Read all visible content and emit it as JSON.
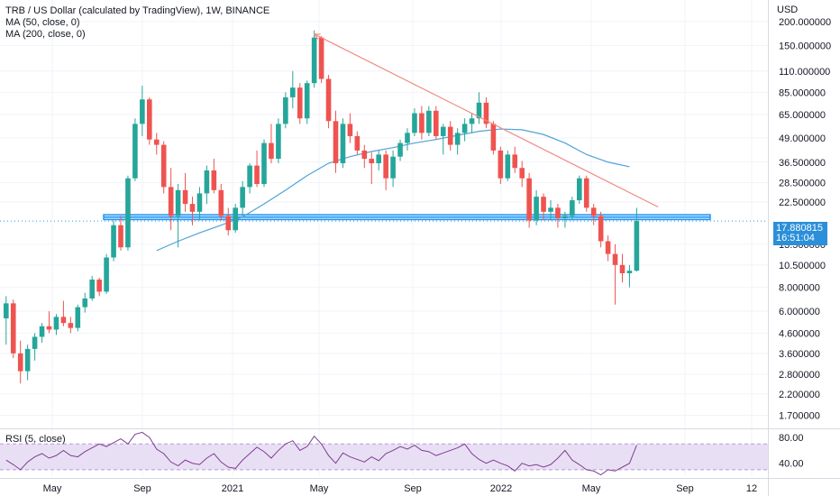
{
  "legend": {
    "title": "TRB / US Dollar (calculated by TradingView), 1W, BINANCE",
    "ma50": "MA (50, close, 0)",
    "ma200": "MA (200, close, 0)",
    "rsi": "RSI (5, close)"
  },
  "price_badge": {
    "price": "17.880815",
    "countdown": "16:51:04"
  },
  "colors": {
    "up": "#26a69a",
    "down": "#ef5350",
    "ma": "#4ea3d6",
    "trendline": "#f08a83",
    "zone": "#2196f3",
    "rsi_line": "#7e3f8f",
    "rsi_band": "#e9dff5",
    "grid": "#f0f3fa"
  },
  "chart_data": {
    "type": "candlestick",
    "y_axis": {
      "unit": "USD",
      "scale": "log",
      "ticks": [
        "200.000000",
        "150.000000",
        "110.000000",
        "85.000000",
        "65.000000",
        "49.000000",
        "36.500000",
        "28.500000",
        "22.500000",
        "17.880815",
        "13.500000",
        "10.500000",
        "8.000000",
        "6.000000",
        "4.600000",
        "3.600000",
        "2.800000",
        "2.200000",
        "1.700000"
      ],
      "tick_values": [
        200,
        150,
        110,
        85,
        65,
        49,
        36.5,
        28.5,
        22.5,
        13.5,
        10.5,
        8,
        6,
        4.6,
        3.6,
        2.8,
        2.2,
        1.7
      ],
      "range": [
        1.5,
        260
      ]
    },
    "x_axis": {
      "labels": [
        "May",
        "Sep",
        "2021",
        "May",
        "Sep",
        "2022",
        "May",
        "Sep",
        "12"
      ]
    },
    "last_price": 17.880815,
    "candles": [
      [
        1,
        5.5,
        7.2,
        4.0,
        6.6
      ],
      [
        2,
        6.6,
        6.9,
        3.4,
        3.6
      ],
      [
        3,
        3.6,
        4.2,
        2.5,
        2.9
      ],
      [
        4,
        2.9,
        4.0,
        2.6,
        3.8
      ],
      [
        5,
        3.8,
        4.6,
        3.3,
        4.4
      ],
      [
        6,
        4.4,
        5.2,
        4.1,
        5.0
      ],
      [
        7,
        5.0,
        6.0,
        4.6,
        4.8
      ],
      [
        8,
        4.8,
        5.8,
        4.5,
        5.6
      ],
      [
        9,
        5.6,
        6.8,
        5.0,
        5.2
      ],
      [
        10,
        5.2,
        5.6,
        4.6,
        4.9
      ],
      [
        11,
        4.9,
        6.5,
        4.7,
        6.3
      ],
      [
        12,
        6.3,
        7.5,
        5.9,
        7.0
      ],
      [
        13,
        7.0,
        9.2,
        6.8,
        8.8
      ],
      [
        14,
        8.8,
        9.0,
        7.2,
        7.6
      ],
      [
        15,
        7.6,
        12.0,
        7.4,
        11.5
      ],
      [
        16,
        11.5,
        18.0,
        11.0,
        17.0
      ],
      [
        17,
        17.0,
        19.0,
        12.5,
        13.0
      ],
      [
        18,
        13.0,
        31.0,
        12.5,
        30.0
      ],
      [
        19,
        30.0,
        62.0,
        29.0,
        58.0
      ],
      [
        20,
        58.0,
        92.0,
        50.0,
        78.0
      ],
      [
        21,
        78.0,
        80.0,
        45.0,
        48.0
      ],
      [
        22,
        48.0,
        52.0,
        40.0,
        45.0
      ],
      [
        23,
        45.0,
        47.0,
        25.0,
        27.0
      ],
      [
        24,
        27.0,
        34.0,
        16.0,
        19.0
      ],
      [
        25,
        19.0,
        28.0,
        13.0,
        26.0
      ],
      [
        26,
        26.0,
        32.0,
        20.0,
        22.0
      ],
      [
        27,
        22.0,
        24.0,
        17.0,
        20.0
      ],
      [
        28,
        20.0,
        27.0,
        18.0,
        25.0
      ],
      [
        29,
        25.0,
        35.0,
        22.0,
        33.0
      ],
      [
        30,
        33.0,
        38.0,
        25.0,
        26.0
      ],
      [
        31,
        26.0,
        28.0,
        18.0,
        19.0
      ],
      [
        32,
        19.0,
        21.0,
        15.0,
        16.0
      ],
      [
        33,
        16.0,
        22.0,
        15.5,
        21.0
      ],
      [
        34,
        21.0,
        29.0,
        19.0,
        27.0
      ],
      [
        35,
        27.0,
        36.0,
        25.0,
        35.0
      ],
      [
        36,
        35.0,
        42.0,
        27.0,
        28.0
      ],
      [
        37,
        28.0,
        48.0,
        27.0,
        46.0
      ],
      [
        38,
        46.0,
        58.0,
        36.0,
        38.0
      ],
      [
        39,
        38.0,
        62.0,
        36.0,
        58.0
      ],
      [
        40,
        58.0,
        85.0,
        55.0,
        80.0
      ],
      [
        41,
        80.0,
        110.0,
        70.0,
        90.0
      ],
      [
        42,
        90.0,
        95.0,
        58.0,
        62.0
      ],
      [
        43,
        62.0,
        98.0,
        58.0,
        95.0
      ],
      [
        44,
        95.0,
        180.0,
        90.0,
        165.0
      ],
      [
        45,
        165.0,
        168.0,
        95.0,
        100.0
      ],
      [
        46,
        100.0,
        105.0,
        55.0,
        60.0
      ],
      [
        47,
        60.0,
        68.0,
        32.0,
        36.0
      ],
      [
        48,
        36.0,
        62.0,
        34.0,
        58.0
      ],
      [
        49,
        58.0,
        66.0,
        46.0,
        50.0
      ],
      [
        50,
        50.0,
        53.0,
        40.0,
        42.0
      ],
      [
        51,
        42.0,
        45.0,
        34.0,
        38.0
      ],
      [
        52,
        38.0,
        41.0,
        28.0,
        36.0
      ],
      [
        53,
        36.0,
        42.0,
        33.0,
        40.0
      ],
      [
        54,
        40.0,
        42.0,
        26.0,
        30.0
      ],
      [
        55,
        30.0,
        42.0,
        27.0,
        39.0
      ],
      [
        56,
        39.0,
        48.0,
        37.0,
        46.0
      ],
      [
        57,
        46.0,
        55.0,
        42.0,
        52.0
      ],
      [
        58,
        52.0,
        70.0,
        50.0,
        66.0
      ],
      [
        59,
        66.0,
        72.0,
        48.0,
        52.0
      ],
      [
        60,
        52.0,
        72.0,
        50.0,
        68.0
      ],
      [
        61,
        68.0,
        72.0,
        48.0,
        50.0
      ],
      [
        62,
        50.0,
        58.0,
        40.0,
        56.0
      ],
      [
        63,
        56.0,
        60.0,
        42.0,
        45.0
      ],
      [
        64,
        45.0,
        55.0,
        40.0,
        52.0
      ],
      [
        65,
        52.0,
        62.0,
        47.0,
        58.0
      ],
      [
        66,
        58.0,
        66.0,
        52.0,
        62.0
      ],
      [
        67,
        62.0,
        85.0,
        58.0,
        75.0
      ],
      [
        68,
        75.0,
        80.0,
        55.0,
        58.0
      ],
      [
        69,
        58.0,
        60.0,
        40.0,
        42.0
      ],
      [
        70,
        42.0,
        44.0,
        28.0,
        30.0
      ],
      [
        71,
        30.0,
        42.0,
        29.0,
        40.0
      ],
      [
        72,
        40.0,
        44.0,
        32.0,
        34.0
      ],
      [
        73,
        34.0,
        37.0,
        27.0,
        30.0
      ],
      [
        74,
        30.0,
        32.0,
        16.5,
        18.0
      ],
      [
        75,
        18.0,
        26.0,
        17.0,
        24.0
      ],
      [
        76,
        24.0,
        25.0,
        18.0,
        20.0
      ],
      [
        77,
        20.0,
        23.0,
        18.0,
        21.0
      ],
      [
        78,
        21.0,
        22.0,
        16.5,
        18.5
      ],
      [
        79,
        18.5,
        20.0,
        16.5,
        19.0
      ],
      [
        80,
        19.0,
        24.0,
        18.0,
        23.0
      ],
      [
        81,
        23.0,
        31.0,
        22.0,
        30.0
      ],
      [
        82,
        30.0,
        31.0,
        20.0,
        21.0
      ],
      [
        83,
        21.0,
        22.0,
        17.0,
        19.0
      ],
      [
        84,
        19.0,
        20.0,
        13.0,
        14.0
      ],
      [
        85,
        14.0,
        15.0,
        11.0,
        12.0
      ],
      [
        86,
        12.0,
        13.5,
        6.5,
        10.5
      ],
      [
        87,
        10.5,
        12.0,
        8.5,
        9.5
      ],
      [
        88,
        9.5,
        10.5,
        8.0,
        9.8
      ],
      [
        89,
        9.8,
        21.0,
        9.7,
        17.88
      ]
    ],
    "ma50": [
      [
        22,
        12.5
      ],
      [
        25,
        14.0
      ],
      [
        28,
        15.5
      ],
      [
        31,
        17.0
      ],
      [
        34,
        18.8
      ],
      [
        37,
        22.0
      ],
      [
        40,
        26.0
      ],
      [
        43,
        31.0
      ],
      [
        46,
        36.0
      ],
      [
        49,
        39.0
      ],
      [
        52,
        41.5
      ],
      [
        55,
        43.5
      ],
      [
        58,
        46.0
      ],
      [
        61,
        48.0
      ],
      [
        64,
        50.5
      ],
      [
        67,
        53.0
      ],
      [
        70,
        54.5
      ],
      [
        73,
        54.0
      ],
      [
        76,
        51.0
      ],
      [
        79,
        46.0
      ],
      [
        82,
        40.0
      ],
      [
        85,
        36.5
      ],
      [
        88,
        34.5
      ]
    ],
    "trendline": [
      [
        44,
        172.0
      ],
      [
        92,
        21.2
      ]
    ],
    "zone": {
      "low": 18.2,
      "high": 19.3
    },
    "rsi": {
      "band": [
        30,
        70
      ],
      "ticks": [
        "80.00",
        "40.00"
      ],
      "values": [
        45,
        38,
        30,
        42,
        50,
        55,
        48,
        52,
        60,
        52,
        50,
        58,
        64,
        70,
        66,
        72,
        78,
        70,
        85,
        88,
        80,
        62,
        55,
        42,
        36,
        45,
        40,
        38,
        48,
        55,
        42,
        34,
        32,
        45,
        55,
        65,
        58,
        48,
        60,
        70,
        75,
        60,
        66,
        82,
        70,
        52,
        40,
        56,
        50,
        46,
        42,
        50,
        44,
        55,
        60,
        66,
        62,
        68,
        60,
        58,
        52,
        56,
        60,
        64,
        70,
        55,
        46,
        40,
        45,
        40,
        36,
        28,
        40,
        36,
        38,
        34,
        38,
        48,
        60,
        45,
        38,
        30,
        28,
        22,
        30,
        28,
        34,
        40,
        68
      ]
    }
  }
}
